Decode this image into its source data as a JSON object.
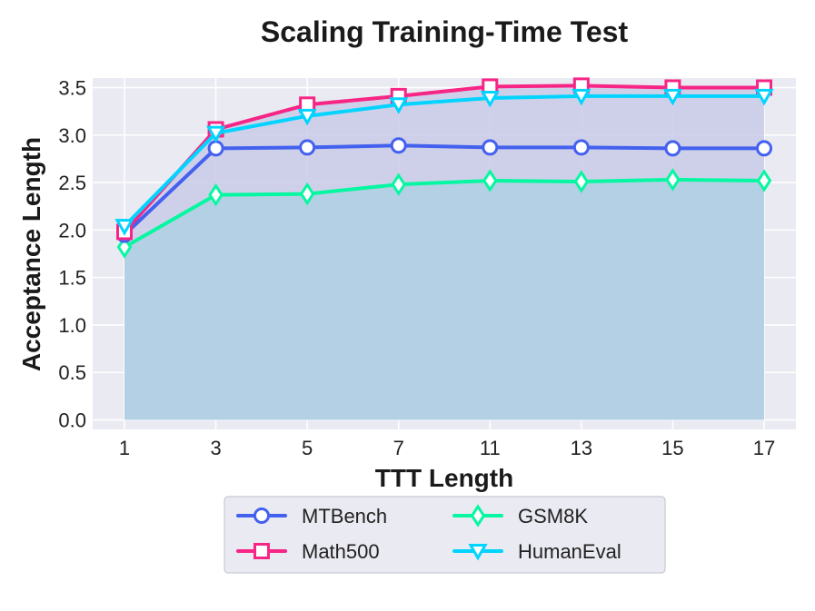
{
  "chart_data": {
    "type": "line",
    "title": "Scaling Training-Time Test",
    "xlabel": "TTT Length",
    "ylabel": "Acceptance Length",
    "categories": [
      "1",
      "3",
      "5",
      "7",
      "11",
      "13",
      "15",
      "17"
    ],
    "ylim": [
      -0.1,
      3.6
    ],
    "yticks": [
      0.0,
      0.5,
      1.0,
      1.5,
      2.0,
      2.5,
      3.0,
      3.5
    ],
    "ytick_labels": [
      "0.0",
      "0.5",
      "1.0",
      "1.5",
      "2.0",
      "2.5",
      "3.0",
      "3.5"
    ],
    "grid": true,
    "legend_position": "bottom-center",
    "series": [
      {
        "name": "MTBench",
        "marker": "circle",
        "color": "#4361ee",
        "values": [
          1.95,
          2.86,
          2.87,
          2.89,
          2.87,
          2.87,
          2.86,
          2.86
        ]
      },
      {
        "name": "Math500",
        "marker": "square",
        "color": "#f72585",
        "values": [
          1.98,
          3.06,
          3.32,
          3.41,
          3.51,
          3.52,
          3.5,
          3.5
        ]
      },
      {
        "name": "GSM8K",
        "marker": "diamond",
        "color": "#06f7a1",
        "values": [
          1.82,
          2.37,
          2.38,
          2.48,
          2.52,
          2.51,
          2.53,
          2.52
        ]
      },
      {
        "name": "HumanEval",
        "marker": "triangle-down",
        "color": "#00d4ff",
        "values": [
          2.04,
          3.02,
          3.2,
          3.32,
          3.39,
          3.41,
          3.41,
          3.41
        ]
      }
    ],
    "fill_colors": {
      "base": "#b4d0e4",
      "band": "#c9cbe9",
      "plot_background": "#eaeaf2",
      "grid": "#ffffff"
    }
  }
}
